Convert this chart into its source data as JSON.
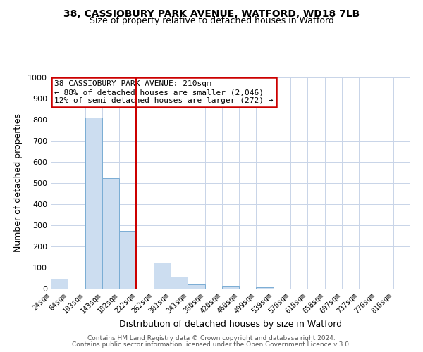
{
  "title1": "38, CASSIOBURY PARK AVENUE, WATFORD, WD18 7LB",
  "title2": "Size of property relative to detached houses in Watford",
  "xlabel": "Distribution of detached houses by size in Watford",
  "ylabel": "Number of detached properties",
  "bar_color": "#ccddf0",
  "bar_edge_color": "#7aadd4",
  "categories": [
    "24sqm",
    "64sqm",
    "103sqm",
    "143sqm",
    "182sqm",
    "222sqm",
    "262sqm",
    "301sqm",
    "341sqm",
    "380sqm",
    "420sqm",
    "460sqm",
    "499sqm",
    "539sqm",
    "578sqm",
    "618sqm",
    "658sqm",
    "697sqm",
    "737sqm",
    "776sqm",
    "816sqm"
  ],
  "values": [
    46,
    0,
    810,
    522,
    275,
    0,
    122,
    57,
    21,
    0,
    13,
    0,
    8,
    0,
    0,
    0,
    0,
    0,
    0,
    0,
    0
  ],
  "vline_x": 5.0,
  "vline_color": "#cc0000",
  "annotation_title": "38 CASSIOBURY PARK AVENUE: 210sqm",
  "annotation_line1": "← 88% of detached houses are smaller (2,046)",
  "annotation_line2": "12% of semi-detached houses are larger (272) →",
  "annotation_box_color": "#cc0000",
  "ylim": [
    0,
    1000
  ],
  "yticks": [
    0,
    100,
    200,
    300,
    400,
    500,
    600,
    700,
    800,
    900,
    1000
  ],
  "footer1": "Contains HM Land Registry data © Crown copyright and database right 2024.",
  "footer2": "Contains public sector information licensed under the Open Government Licence v.3.0.",
  "background_color": "#ffffff",
  "grid_color": "#c8d4e8"
}
